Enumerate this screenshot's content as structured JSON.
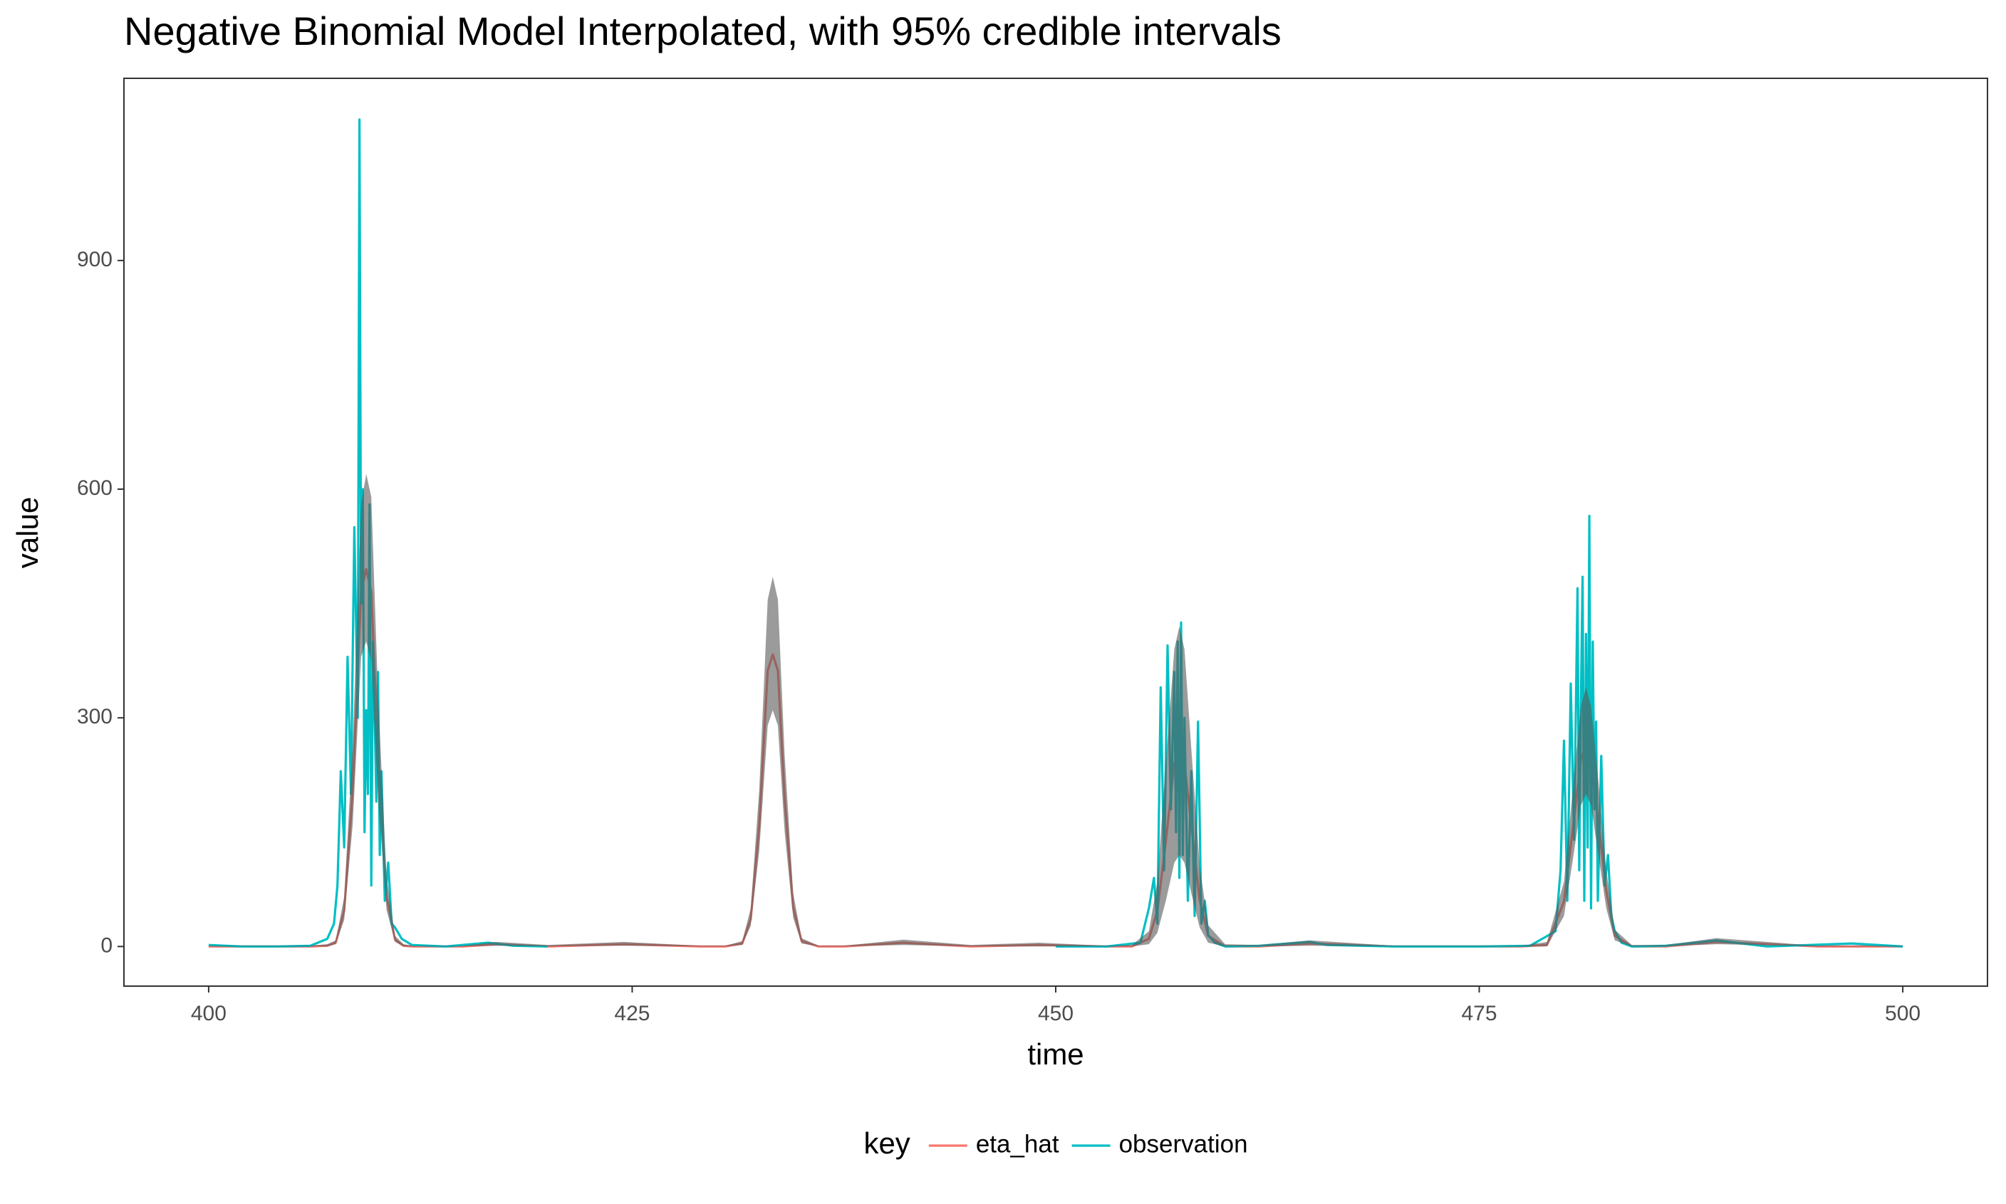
{
  "chart_data": {
    "type": "line",
    "title": "Negative Binomial Model Interpolated, with 95% credible intervals",
    "x_label": "time",
    "y_label": "value",
    "legend_title": "key",
    "legend_position": "bottom",
    "grid": false,
    "xlim": [
      395,
      505
    ],
    "ylim": [
      -52,
      1139
    ],
    "xticks": [
      400,
      425,
      450,
      475,
      500
    ],
    "yticks": [
      0,
      300,
      600,
      900
    ],
    "x": [
      400,
      405,
      406,
      407,
      407.5,
      408,
      408.5,
      409,
      409.3,
      409.6,
      410,
      410.5,
      411,
      411.5,
      412,
      413,
      415,
      417,
      420,
      424.5,
      429,
      430.5,
      431.5,
      432,
      432.5,
      433,
      433.3,
      433.6,
      434,
      434.5,
      435,
      436,
      437.5,
      441,
      445,
      449,
      453,
      454.5,
      455.5,
      456,
      456.5,
      457,
      457.3,
      457.6,
      458,
      458.5,
      459,
      460,
      462,
      465,
      470,
      477.5,
      479,
      480,
      480.5,
      481,
      481.3,
      481.6,
      482,
      482.5,
      483,
      484,
      486,
      489,
      495,
      500
    ],
    "ribbon": {
      "color": "#595959",
      "alpha": 0.6,
      "lower": [
        0,
        0,
        0,
        0,
        3,
        35,
        160,
        380,
        400,
        375,
        195,
        48,
        6,
        0,
        0,
        0,
        0,
        1,
        0,
        1,
        0,
        0,
        2,
        27,
        125,
        290,
        310,
        290,
        150,
        38,
        4,
        0,
        0,
        2,
        0,
        0,
        0,
        0,
        3,
        18,
        60,
        110,
        120,
        110,
        70,
        25,
        5,
        0,
        0,
        1,
        0,
        0,
        0,
        40,
        110,
        185,
        200,
        185,
        125,
        50,
        8,
        0,
        0,
        3,
        0,
        0
      ],
      "upper": [
        1,
        1,
        1,
        3,
        8,
        65,
        265,
        580,
        620,
        590,
        330,
        92,
        14,
        3,
        1,
        1,
        1,
        6,
        2,
        6,
        1,
        1,
        7,
        50,
        205,
        455,
        485,
        455,
        250,
        70,
        11,
        1,
        1,
        9,
        2,
        5,
        1,
        2,
        20,
        85,
        240,
        390,
        420,
        390,
        260,
        105,
        28,
        3,
        2,
        8,
        1,
        1,
        6,
        85,
        200,
        315,
        340,
        315,
        225,
        100,
        22,
        2,
        2,
        11,
        1,
        1
      ]
    },
    "series": [
      {
        "name": "eta_hat",
        "color": "#F8766D",
        "values": [
          0,
          0,
          0,
          1,
          5,
          47,
          205,
          465,
          495,
          465,
          251,
          66,
          9,
          1,
          0,
          0,
          0,
          3,
          0,
          3,
          0,
          0,
          4,
          36,
          158,
          362,
          383,
          362,
          194,
          51,
          7,
          0,
          0,
          5,
          0,
          2,
          0,
          0,
          10,
          47,
          138,
          240,
          265,
          240,
          160,
          61,
          14,
          0,
          0,
          4,
          0,
          0,
          2,
          59,
          150,
          244,
          265,
          244,
          171,
          73,
          14,
          0,
          0,
          6,
          0,
          0
        ]
      },
      {
        "name": "observation",
        "color": "#00BFC4",
        "x": [
          400,
          402,
          404,
          406,
          407,
          407.4,
          407.6,
          407.8,
          408,
          408.2,
          408.4,
          408.6,
          408.8,
          408.9,
          409,
          409.1,
          409.2,
          409.3,
          409.4,
          409.5,
          409.6,
          409.7,
          409.8,
          409.9,
          410,
          410.1,
          410.2,
          410.4,
          410.6,
          410.8,
          411,
          411.4,
          412,
          414,
          416.5,
          418,
          420,
          435,
          450,
          453,
          455,
          455.5,
          455.8,
          456,
          456.2,
          456.4,
          456.6,
          456.8,
          457,
          457.1,
          457.2,
          457.3,
          457.4,
          457.5,
          457.6,
          457.8,
          458,
          458.2,
          458.4,
          458.6,
          458.8,
          459,
          459.4,
          460,
          462,
          465,
          466,
          470,
          475,
          478,
          479.5,
          479.8,
          480,
          480.2,
          480.4,
          480.6,
          480.8,
          480.9,
          481,
          481.1,
          481.2,
          481.3,
          481.4,
          481.5,
          481.6,
          481.7,
          481.8,
          481.9,
          482,
          482.2,
          482.4,
          482.6,
          482.8,
          483,
          483.4,
          484,
          486,
          489,
          492,
          497,
          500
        ],
        "values": [
          2,
          0,
          0,
          1,
          10,
          30,
          80,
          230,
          130,
          380,
          200,
          550,
          300,
          1085,
          450,
          600,
          150,
          310,
          200,
          580,
          80,
          400,
          300,
          190,
          360,
          120,
          230,
          60,
          110,
          30,
          25,
          10,
          2,
          0,
          5,
          1,
          0,
          null,
          0,
          0,
          5,
          50,
          90,
          30,
          340,
          100,
          395,
          180,
          360,
          150,
          400,
          90,
          425,
          120,
          300,
          60,
          230,
          40,
          295,
          30,
          60,
          15,
          5,
          0,
          1,
          6,
          2,
          0,
          0,
          1,
          20,
          100,
          270,
          60,
          345,
          140,
          470,
          100,
          320,
          485,
          60,
          410,
          130,
          565,
          50,
          400,
          180,
          295,
          60,
          250,
          80,
          120,
          40,
          20,
          5,
          0,
          1,
          8,
          0,
          4,
          0
        ]
      }
    ]
  }
}
